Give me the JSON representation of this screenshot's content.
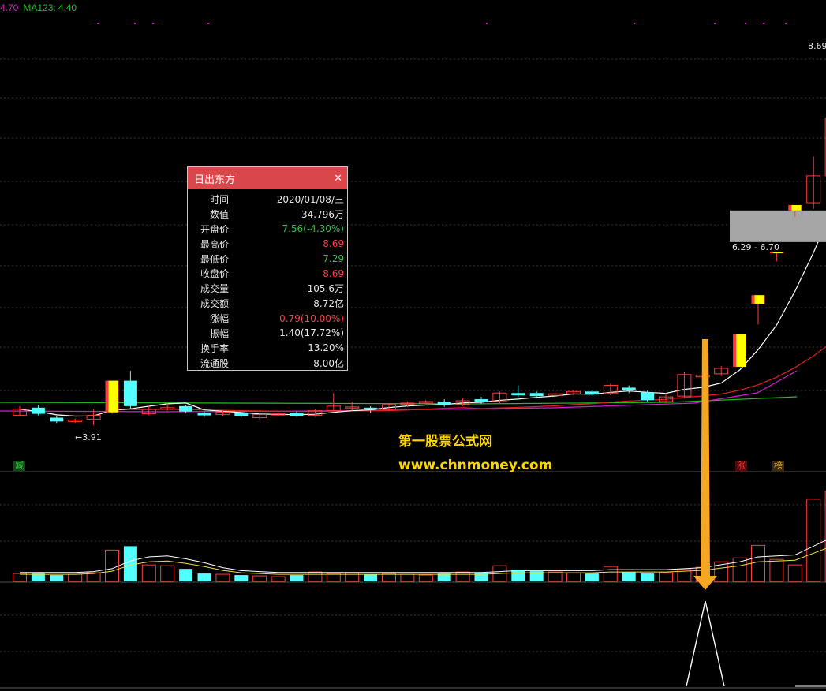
{
  "header": {
    "ma_prev": "4.70",
    "ma_label": "MA123:",
    "ma_value": "4.40"
  },
  "popup": {
    "title": "日出东方",
    "close_icon": "close-icon",
    "rows": [
      {
        "label": "时间",
        "value": "2020/01/08/三",
        "color": "#e6e6e6"
      },
      {
        "label": "数值",
        "value": "34.796万",
        "color": "#e6e6e6"
      },
      {
        "label": "开盘价",
        "value": "7.56(-4.30%)",
        "color": "#3dbd4a"
      },
      {
        "label": "最高价",
        "value": "8.69",
        "color": "#ff4040"
      },
      {
        "label": "最低价",
        "value": "7.29",
        "color": "#3dbd4a"
      },
      {
        "label": "收盘价",
        "value": "8.69",
        "color": "#ff4040"
      },
      {
        "label": "成交量",
        "value": "105.6万",
        "color": "#e6e6e6"
      },
      {
        "label": "成交额",
        "value": "8.72亿",
        "color": "#e6e6e6"
      },
      {
        "label": "涨幅",
        "value": "0.79(10.00%)",
        "color": "#ff4040"
      },
      {
        "label": "振幅",
        "value": "1.40(17.72%)",
        "color": "#e6e6e6"
      },
      {
        "label": "换手率",
        "value": "13.20%",
        "color": "#e6e6e6"
      },
      {
        "label": "流通股",
        "value": "8.00亿",
        "color": "#e6e6e6"
      }
    ]
  },
  "annotations": {
    "high_label": "8.69",
    "low_label": "←3.91",
    "gap_low": "6.29",
    "gap_sep": "-",
    "gap_high": "6.70",
    "tag_reduce": "减",
    "tag_limit": "涨",
    "tag_list": "榜"
  },
  "watermark": {
    "line1": "第一股票公式网",
    "line2": "www.chnmoney.com"
  },
  "colors": {
    "up": "#ff3c3c",
    "down": "#54ffff",
    "limit_fill": "#ffff00",
    "ma_white": "#ffffff",
    "ma_red": "#e02020",
    "ma_magenta": "#d21fd2",
    "ma_green": "#20c020",
    "arrow": "#f5a623"
  },
  "chart_data": {
    "type": "candlestick",
    "price_range": [
      3.8,
      8.9
    ],
    "candles": [
      {
        "o": 4.04,
        "c": 4.12,
        "h": 4.16,
        "l": 4.03
      },
      {
        "o": 4.14,
        "c": 4.06,
        "h": 4.17,
        "l": 4.04
      },
      {
        "o": 4.01,
        "c": 3.96,
        "h": 4.03,
        "l": 3.94
      },
      {
        "o": 3.96,
        "c": 3.98,
        "h": 4.0,
        "l": 3.94
      },
      {
        "o": 3.99,
        "c": 4.04,
        "h": 4.12,
        "l": 3.91
      },
      {
        "o": 4.08,
        "c": 4.49,
        "h": 4.49,
        "l": 4.06,
        "limit": true
      },
      {
        "o": 4.49,
        "c": 4.16,
        "h": 4.62,
        "l": 4.12
      },
      {
        "o": 4.06,
        "c": 4.12,
        "h": 4.16,
        "l": 4.04
      },
      {
        "o": 4.12,
        "c": 4.14,
        "h": 4.2,
        "l": 4.1
      },
      {
        "o": 4.16,
        "c": 4.09,
        "h": 4.18,
        "l": 4.07
      },
      {
        "o": 4.07,
        "c": 4.04,
        "h": 4.09,
        "l": 4.02
      },
      {
        "o": 4.05,
        "c": 4.08,
        "h": 4.1,
        "l": 4.03
      },
      {
        "o": 4.07,
        "c": 4.03,
        "h": 4.08,
        "l": 4.02
      },
      {
        "o": 4.01,
        "c": 4.05,
        "h": 4.07,
        "l": 3.99
      },
      {
        "o": 4.05,
        "c": 4.06,
        "h": 4.08,
        "l": 4.03
      },
      {
        "o": 4.07,
        "c": 4.03,
        "h": 4.09,
        "l": 4.02
      },
      {
        "o": 4.04,
        "c": 4.1,
        "h": 4.12,
        "l": 4.02
      },
      {
        "o": 4.1,
        "c": 4.16,
        "h": 4.33,
        "l": 4.08
      },
      {
        "o": 4.15,
        "c": 4.15,
        "h": 4.22,
        "l": 4.1
      },
      {
        "o": 4.14,
        "c": 4.12,
        "h": 4.16,
        "l": 4.07
      },
      {
        "o": 4.12,
        "c": 4.18,
        "h": 4.2,
        "l": 4.1
      },
      {
        "o": 4.18,
        "c": 4.2,
        "h": 4.22,
        "l": 4.15
      },
      {
        "o": 4.2,
        "c": 4.22,
        "h": 4.24,
        "l": 4.17
      },
      {
        "o": 4.22,
        "c": 4.18,
        "h": 4.25,
        "l": 4.15
      },
      {
        "o": 4.18,
        "c": 4.23,
        "h": 4.27,
        "l": 4.16
      },
      {
        "o": 4.25,
        "c": 4.22,
        "h": 4.28,
        "l": 4.19
      },
      {
        "o": 4.22,
        "c": 4.33,
        "h": 4.35,
        "l": 4.2
      },
      {
        "o": 4.33,
        "c": 4.3,
        "h": 4.43,
        "l": 4.28
      },
      {
        "o": 4.33,
        "c": 4.29,
        "h": 4.35,
        "l": 4.26
      },
      {
        "o": 4.3,
        "c": 4.32,
        "h": 4.36,
        "l": 4.28
      },
      {
        "o": 4.32,
        "c": 4.35,
        "h": 4.37,
        "l": 4.3
      },
      {
        "o": 4.35,
        "c": 4.31,
        "h": 4.37,
        "l": 4.29
      },
      {
        "o": 4.33,
        "c": 4.43,
        "h": 4.45,
        "l": 4.3
      },
      {
        "o": 4.4,
        "c": 4.37,
        "h": 4.43,
        "l": 4.33
      },
      {
        "o": 4.34,
        "c": 4.24,
        "h": 4.36,
        "l": 4.22
      },
      {
        "o": 4.22,
        "c": 4.28,
        "h": 4.33,
        "l": 4.2
      },
      {
        "o": 4.29,
        "c": 4.57,
        "h": 4.6,
        "l": 4.26
      },
      {
        "o": 4.54,
        "c": 4.56,
        "h": 4.62,
        "l": 4.49
      },
      {
        "o": 4.58,
        "c": 4.65,
        "h": 4.68,
        "l": 4.55
      },
      {
        "o": 4.67,
        "c": 5.09,
        "h": 5.09,
        "l": 4.67,
        "limit": true
      },
      {
        "o": 5.49,
        "c": 5.6,
        "h": 5.6,
        "l": 5.22,
        "limit": true
      },
      {
        "o": 6.16,
        "c": 6.16,
        "h": 6.16,
        "l": 6.04,
        "limit": true
      },
      {
        "o": 6.7,
        "c": 6.77,
        "h": 6.77,
        "l": 6.62,
        "limit": true
      },
      {
        "o": 6.8,
        "c": 7.15,
        "h": 7.4,
        "l": 6.72
      },
      {
        "o": 7.15,
        "c": 7.9,
        "h": 8.1,
        "l": 7.12
      },
      {
        "o": 7.56,
        "c": 8.69,
        "h": 8.69,
        "l": 7.29,
        "limit": true
      }
    ],
    "gap": {
      "low": 6.29,
      "high": 6.7
    },
    "volume_range": [
      0,
      10
    ],
    "volumes": [
      1.0,
      1.0,
      0.8,
      0.9,
      1.1,
      4.0,
      4.5,
      2.1,
      2.0,
      1.6,
      1.0,
      0.9,
      0.8,
      0.7,
      0.6,
      0.8,
      1.2,
      1.0,
      1.1,
      0.9,
      1.0,
      0.9,
      0.8,
      1.0,
      1.2,
      1.1,
      2.0,
      1.5,
      1.3,
      1.2,
      1.1,
      1.0,
      1.9,
      1.2,
      1.0,
      1.1,
      1.5,
      1.8,
      2.5,
      3.0,
      4.6,
      2.8,
      2.1,
      10.5,
      11.5,
      11.3
    ],
    "volume_ma": [
      0.9,
      0.9,
      0.9,
      0.9,
      1.0,
      1.3,
      2.1,
      2.5,
      2.6,
      2.3,
      1.9,
      1.4,
      1.1,
      1.0,
      0.9,
      0.9,
      0.9,
      0.9,
      0.9,
      0.9,
      0.9,
      0.9,
      0.9,
      0.9,
      0.9,
      0.9,
      1.0,
      1.1,
      1.1,
      1.1,
      1.1,
      1.1,
      1.2,
      1.2,
      1.2,
      1.2,
      1.3,
      1.4,
      1.7,
      2.0,
      2.5,
      2.6,
      2.7,
      3.6,
      4.5,
      5.3
    ]
  }
}
